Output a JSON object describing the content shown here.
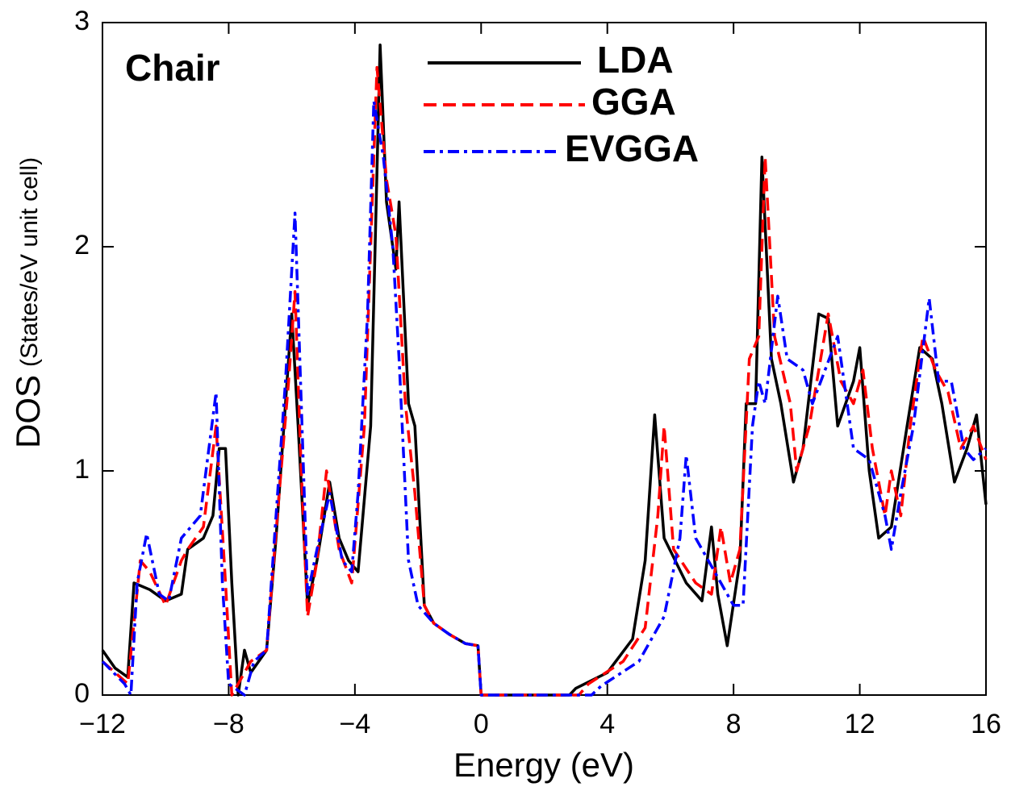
{
  "chart_data": {
    "type": "line",
    "annotation": "Chair",
    "xlabel": "Energy (eV)",
    "ylabel": "DOS",
    "ylabel_units": "(States/eV unit cell)",
    "xlim": [
      -12,
      16
    ],
    "ylim": [
      0,
      3
    ],
    "xticks": [
      {
        "value": -12,
        "label": "−12"
      },
      {
        "value": -8,
        "label": "−8"
      },
      {
        "value": -4,
        "label": "−4"
      },
      0,
      4,
      8,
      12,
      16
    ],
    "yticks": [
      0,
      1,
      2,
      3
    ],
    "legend": "top",
    "series": [
      {
        "name": "LDA",
        "color": "#000000",
        "dash": "solid",
        "x": [
          -12,
          -11.6,
          -11.2,
          -11,
          -10.5,
          -10,
          -9.5,
          -9.3,
          -8.8,
          -8.5,
          -8.3,
          -8.1,
          -7.9,
          -7.7,
          -7.5,
          -7.3,
          -6.8,
          -6.5,
          -6.2,
          -6,
          -5.8,
          -5.5,
          -5.2,
          -4.8,
          -4.5,
          -4.2,
          -3.9,
          -3.5,
          -3.2,
          -3,
          -2.7,
          -2.6,
          -2.3,
          -2.1,
          -1.8,
          -1.5,
          -1,
          -0.5,
          -0.1,
          0,
          2.8,
          3,
          4,
          4.8,
          5.2,
          5.5,
          5.8,
          6.5,
          7,
          7.3,
          7.5,
          7.8,
          8.2,
          8.4,
          8.7,
          8.9,
          9.2,
          9.5,
          9.9,
          10.2,
          10.7,
          11,
          11.3,
          11.8,
          12,
          12.3,
          12.6,
          13,
          13.5,
          13.9,
          14.3,
          14.6,
          15,
          15.4,
          15.7,
          16
        ],
        "values": [
          0.2,
          0.12,
          0.08,
          0.5,
          0.47,
          0.42,
          0.45,
          0.65,
          0.7,
          0.8,
          1.1,
          1.1,
          0.5,
          0,
          0.2,
          0.1,
          0.2,
          0.7,
          1.3,
          1.7,
          1.2,
          0.4,
          0.6,
          0.95,
          0.7,
          0.6,
          0.55,
          1.2,
          2.9,
          2.2,
          1.9,
          2.2,
          1.3,
          1.2,
          0.4,
          0.32,
          0.27,
          0.23,
          0.22,
          0,
          0,
          0.03,
          0.1,
          0.25,
          0.6,
          1.25,
          0.7,
          0.5,
          0.42,
          0.75,
          0.45,
          0.22,
          0.6,
          1.3,
          1.3,
          2.4,
          1.5,
          1.3,
          0.95,
          1.1,
          1.7,
          1.68,
          1.2,
          1.4,
          1.55,
          1.0,
          0.7,
          0.75,
          1.2,
          1.55,
          1.5,
          1.3,
          0.95,
          1.1,
          1.25,
          0.85
        ]
      },
      {
        "name": "GGA",
        "color": "#ff0000",
        "dash": "dashed",
        "x": [
          -12,
          -11.2,
          -10.8,
          -10.5,
          -10,
          -9.5,
          -9.3,
          -8.8,
          -8.4,
          -8.1,
          -7.9,
          -7.7,
          -7.3,
          -6.8,
          -6.4,
          -6.1,
          -5.9,
          -5.7,
          -5.5,
          -5.2,
          -4.9,
          -4.5,
          -4.1,
          -3.7,
          -3.3,
          -3,
          -2.7,
          -2.4,
          -2.1,
          -1.8,
          -1.5,
          -1,
          -0.5,
          -0.1,
          0,
          3.1,
          3.4,
          4.5,
          5.2,
          5.6,
          5.8,
          6.1,
          6.8,
          7.3,
          7.6,
          7.9,
          8.2,
          8.5,
          8.8,
          9,
          9.3,
          9.8,
          10,
          10.4,
          11,
          11.4,
          11.8,
          12.1,
          12.4,
          12.8,
          13,
          13.3,
          13.6,
          14,
          14.4,
          14.8,
          15.2,
          15.6,
          16
        ],
        "values": [
          0.15,
          0.05,
          0.6,
          0.55,
          0.4,
          0.6,
          0.65,
          0.75,
          1.2,
          0.5,
          0,
          0.05,
          0.15,
          0.2,
          0.9,
          1.4,
          1.8,
          1.0,
          0.35,
          0.6,
          1.0,
          0.65,
          0.5,
          1.2,
          2.8,
          2.3,
          2.05,
          1.3,
          0.9,
          0.4,
          0.32,
          0.27,
          0.23,
          0.22,
          0,
          0,
          0.05,
          0.15,
          0.3,
          0.8,
          1.2,
          0.65,
          0.5,
          0.45,
          0.75,
          0.5,
          0.65,
          1.5,
          1.6,
          2.4,
          1.6,
          1.3,
          1.0,
          1.2,
          1.7,
          1.4,
          1.3,
          1.45,
          1.1,
          0.8,
          1.0,
          0.8,
          1.2,
          1.6,
          1.45,
          1.35,
          1.1,
          1.2,
          1.05
        ]
      },
      {
        "name": "EVGGA",
        "color": "#0000ff",
        "dash": "dashdot",
        "x": [
          -12,
          -11.3,
          -11.1,
          -10.9,
          -10.6,
          -10.2,
          -9.9,
          -9.5,
          -8.9,
          -8.4,
          -8.2,
          -8,
          -7.5,
          -7.2,
          -6.8,
          -6.5,
          -6.2,
          -5.9,
          -5.7,
          -5.5,
          -5.2,
          -4.8,
          -4.4,
          -4.1,
          -3.9,
          -3.6,
          -3.4,
          -3.1,
          -2.8,
          -2.6,
          -2.3,
          -2,
          -1.5,
          -1,
          -0.5,
          -0.1,
          0,
          3.5,
          3.8,
          5,
          5.8,
          6.3,
          6.5,
          6.8,
          7.4,
          8,
          8.3,
          8.6,
          8.8,
          9,
          9.4,
          9.7,
          10.2,
          10.5,
          11.3,
          11.8,
          12.3,
          12.8,
          13,
          13.3,
          13.7,
          14.2,
          14.5,
          14.9,
          15.3,
          15.6,
          16
        ],
        "values": [
          0.15,
          0.05,
          0,
          0.5,
          0.72,
          0.45,
          0.42,
          0.7,
          0.8,
          1.35,
          0.5,
          0.05,
          0,
          0.15,
          0.2,
          0.8,
          1.4,
          2.15,
          1.3,
          0.45,
          0.65,
          0.9,
          0.6,
          0.55,
          0.9,
          1.7,
          2.65,
          2.4,
          2.0,
          1.5,
          0.6,
          0.4,
          0.32,
          0.27,
          0.23,
          0.22,
          0,
          0,
          0.04,
          0.15,
          0.35,
          0.7,
          1.07,
          0.7,
          0.55,
          0.4,
          0.4,
          1.2,
          1.4,
          1.3,
          1.78,
          1.5,
          1.45,
          1.3,
          1.6,
          1.1,
          1.05,
          0.8,
          0.65,
          0.9,
          1.2,
          1.77,
          1.4,
          1.4,
          1.1,
          1.05,
          1.1
        ]
      }
    ]
  }
}
